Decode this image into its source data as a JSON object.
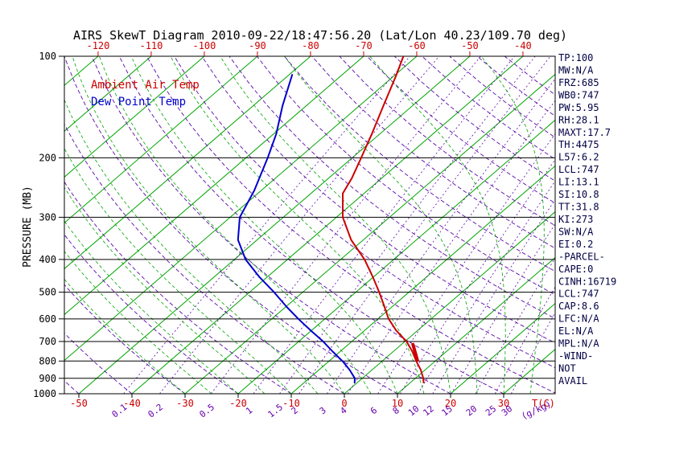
{
  "title": "AIRS SkewT Diagram 2010-09-22/18:47:56.20 (Lat/Lon 40.23/109.70 deg)",
  "legend": {
    "temp": "Ambient Air Temp",
    "dewpoint": "Dew Point Temp"
  },
  "axes": {
    "pressure_label": "PRESSURE (MB)",
    "pressure_ticks": [
      100,
      200,
      300,
      400,
      500,
      600,
      700,
      800,
      900,
      1000
    ],
    "top_temp_ticks": [
      -120,
      -110,
      -100,
      -90,
      -80,
      -70,
      -60,
      -50,
      -40
    ],
    "bottom_temp_ticks": [
      -50,
      -40,
      -30,
      -20,
      -10,
      0,
      10,
      20,
      30
    ],
    "temp_unit_label": "T(C)",
    "mixing_ratio_unit_label": "(g/kg)"
  },
  "grid_lines": {
    "isotherms_c": [
      -160,
      -150,
      -140,
      -130,
      -120,
      -110,
      -100,
      -90,
      -80,
      -70,
      -60,
      -50,
      -40,
      -30,
      -20,
      -10,
      0,
      10,
      20,
      30,
      40
    ],
    "dry_adiabat_thetas_c": [
      -50,
      -40,
      -30,
      -20,
      -10,
      0,
      10,
      20,
      30,
      40,
      50,
      60,
      70,
      80,
      90,
      100,
      110,
      120,
      130,
      140,
      150,
      160,
      170
    ],
    "moist_adiabat_thetaw_c": [
      -30,
      -25,
      -20,
      -15,
      -10,
      -5,
      0,
      5,
      10,
      15,
      20,
      25,
      30,
      35,
      40
    ],
    "mixing_ratio_gkg": [
      0.1,
      0.2,
      0.5,
      1,
      1.5,
      2,
      3,
      4,
      6,
      8,
      10,
      12,
      15,
      20,
      25,
      30
    ]
  },
  "colors": {
    "isotherm": "#00a400",
    "moist_adiabat": "#00a400",
    "dry_adiabat": "#5a0aa8",
    "mixing_ratio": "#5a0aa8",
    "isobar": "#000000",
    "temp_curve": "#cc0000",
    "dewpoint_curve": "#0000cc",
    "tick_red": "#cc0000",
    "stats_text": "#000044"
  },
  "stats_panel": {
    "lines": [
      "TP:100",
      "MW:N/A",
      "FRZ:685",
      "WB0:747",
      "PW:5.95",
      "RH:28.1",
      "MAXT:17.7",
      "TH:4475",
      "L57:6.2",
      "LCL:747",
      "LI:13.1",
      "SI:10.8",
      "TT:31.8",
      "KI:273",
      "SW:N/A",
      "EI:0.2",
      "-PARCEL-",
      "CAPE:0",
      "CINH:16719",
      "LCL:747",
      "CAP:8.6",
      "LFC:N/A",
      "EL:N/A",
      "MPL:N/A",
      "-WIND-",
      "NOT",
      "AVAIL"
    ]
  },
  "chart_data": {
    "type": "line",
    "title": "AIRS SkewT Diagram 2010-09-22/18:47:56.20 (Lat/Lon 40.23/109.70 deg)",
    "x_axis": {
      "label": "T(C)",
      "ticks_at_100mb": [
        -120,
        -110,
        -100,
        -90,
        -80,
        -70,
        -60,
        -50,
        -40
      ],
      "ticks_at_1000mb": [
        -50,
        -40,
        -30,
        -20,
        -10,
        0,
        10,
        20,
        30
      ],
      "skew": "right-45deg"
    },
    "y_axis": {
      "label": "PRESSURE (MB)",
      "scale": "log",
      "range": [
        100,
        1000
      ]
    },
    "series": [
      {
        "name": "Ambient Air Temp",
        "color": "#cc0000",
        "points": [
          {
            "p": 100,
            "t": -62.5
          },
          {
            "p": 115,
            "t": -59.5
          },
          {
            "p": 140,
            "t": -55.5
          },
          {
            "p": 170,
            "t": -51.5
          },
          {
            "p": 200,
            "t": -48.3
          },
          {
            "p": 230,
            "t": -45.6
          },
          {
            "p": 255,
            "t": -44.0
          },
          {
            "p": 300,
            "t": -38.8
          },
          {
            "p": 350,
            "t": -32.3
          },
          {
            "p": 400,
            "t": -25.5
          },
          {
            "p": 450,
            "t": -20.2
          },
          {
            "p": 500,
            "t": -15.6
          },
          {
            "p": 550,
            "t": -11.6
          },
          {
            "p": 600,
            "t": -8.0
          },
          {
            "p": 650,
            "t": -4.0
          },
          {
            "p": 700,
            "t": 0.3
          },
          {
            "p": 750,
            "t": 3.6
          },
          {
            "p": 800,
            "t": 6.4
          },
          {
            "p": 850,
            "t": 9.2
          },
          {
            "p": 900,
            "t": 11.5
          },
          {
            "p": 930,
            "t": 12.6
          }
        ]
      },
      {
        "name": "Dew Point Temp",
        "color": "#0000cc",
        "points": [
          {
            "p": 113,
            "t": -79.5
          },
          {
            "p": 140,
            "t": -74.5
          },
          {
            "p": 170,
            "t": -69.5
          },
          {
            "p": 200,
            "t": -65.9
          },
          {
            "p": 250,
            "t": -61.3
          },
          {
            "p": 300,
            "t": -58.2
          },
          {
            "p": 350,
            "t": -53.6
          },
          {
            "p": 400,
            "t": -47.9
          },
          {
            "p": 450,
            "t": -41.6
          },
          {
            "p": 500,
            "t": -35.4
          },
          {
            "p": 550,
            "t": -30.1
          },
          {
            "p": 600,
            "t": -25.0
          },
          {
            "p": 650,
            "t": -20.1
          },
          {
            "p": 700,
            "t": -15.4
          },
          {
            "p": 750,
            "t": -11.4
          },
          {
            "p": 800,
            "t": -7.5
          },
          {
            "p": 850,
            "t": -4.2
          },
          {
            "p": 900,
            "t": -1.4
          },
          {
            "p": 930,
            "t": -0.4
          }
        ]
      }
    ],
    "parcel_marker": {
      "color": "#cc0000",
      "points": [
        {
          "p": 715,
          "t": 2.2
        },
        {
          "p": 795,
          "t": 6.4
        }
      ]
    }
  }
}
